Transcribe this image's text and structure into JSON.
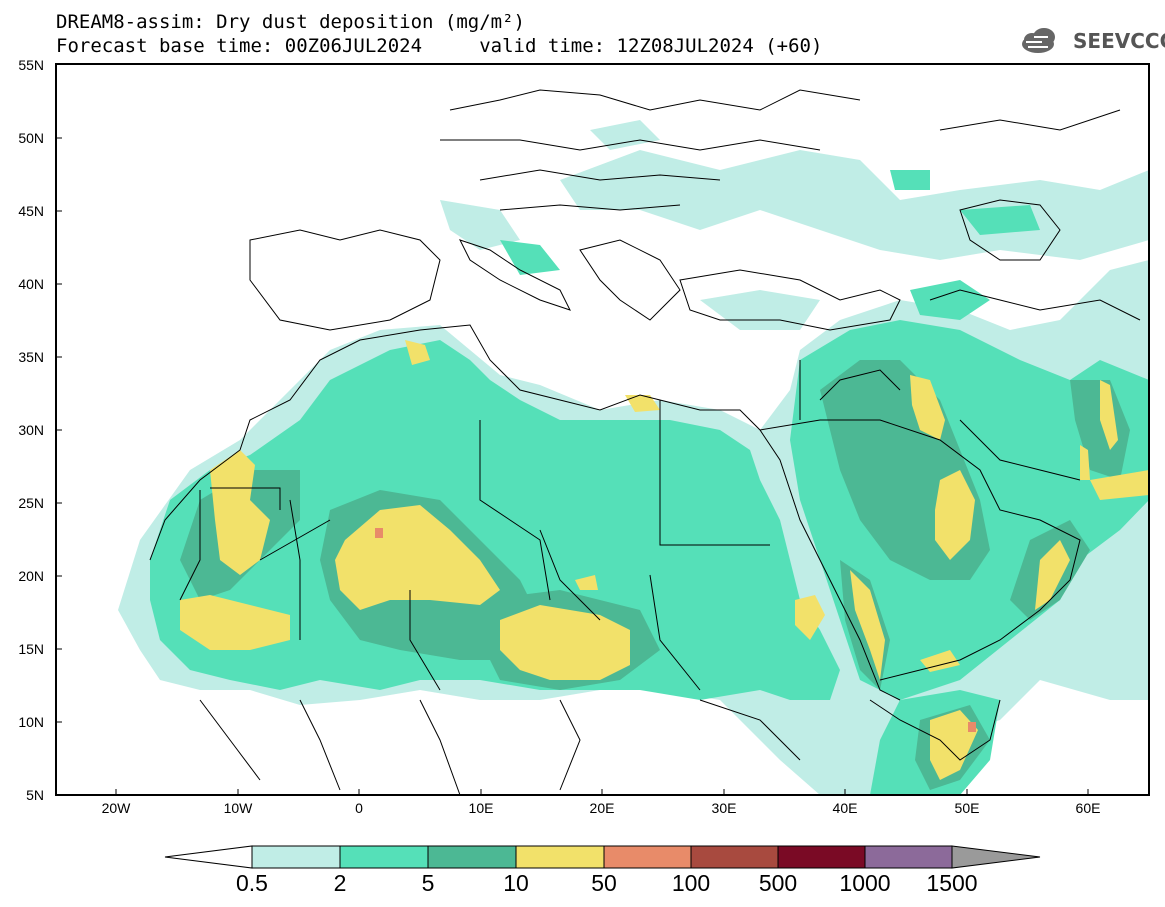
{
  "title": {
    "line1": "DREAM8-assim: Dry dust deposition (mg/m²)",
    "line2": "Forecast base time: 00Z06JUL2024     valid time: 12Z08JUL2024 (+60)"
  },
  "logo": {
    "text": "SEEVCCC",
    "icon": "cloud-icon"
  },
  "map": {
    "lon_range": [
      -25,
      65
    ],
    "lat_range": [
      5,
      55
    ],
    "lat_labels": [
      "55N",
      "50N",
      "45N",
      "40N",
      "35N",
      "30N",
      "25N",
      "20N",
      "15N",
      "10N",
      "5N"
    ],
    "lon_labels": [
      "20W",
      "10W",
      "0",
      "10E",
      "20E",
      "30E",
      "40E",
      "50E",
      "60E"
    ],
    "colors": {
      "land_bg": "#ffffff",
      "border": "#000000"
    }
  },
  "legend": {
    "levels": [
      "0.5",
      "2",
      "5",
      "10",
      "50",
      "100",
      "500",
      "1000",
      "1500"
    ],
    "colors": [
      "#ffffff",
      "#c0ede6",
      "#55e0b8",
      "#4cb894",
      "#f2e16a",
      "#e88b69",
      "#a84a3f",
      "#7a0a25",
      "#8c6a9a",
      "#9a9a9a"
    ]
  }
}
